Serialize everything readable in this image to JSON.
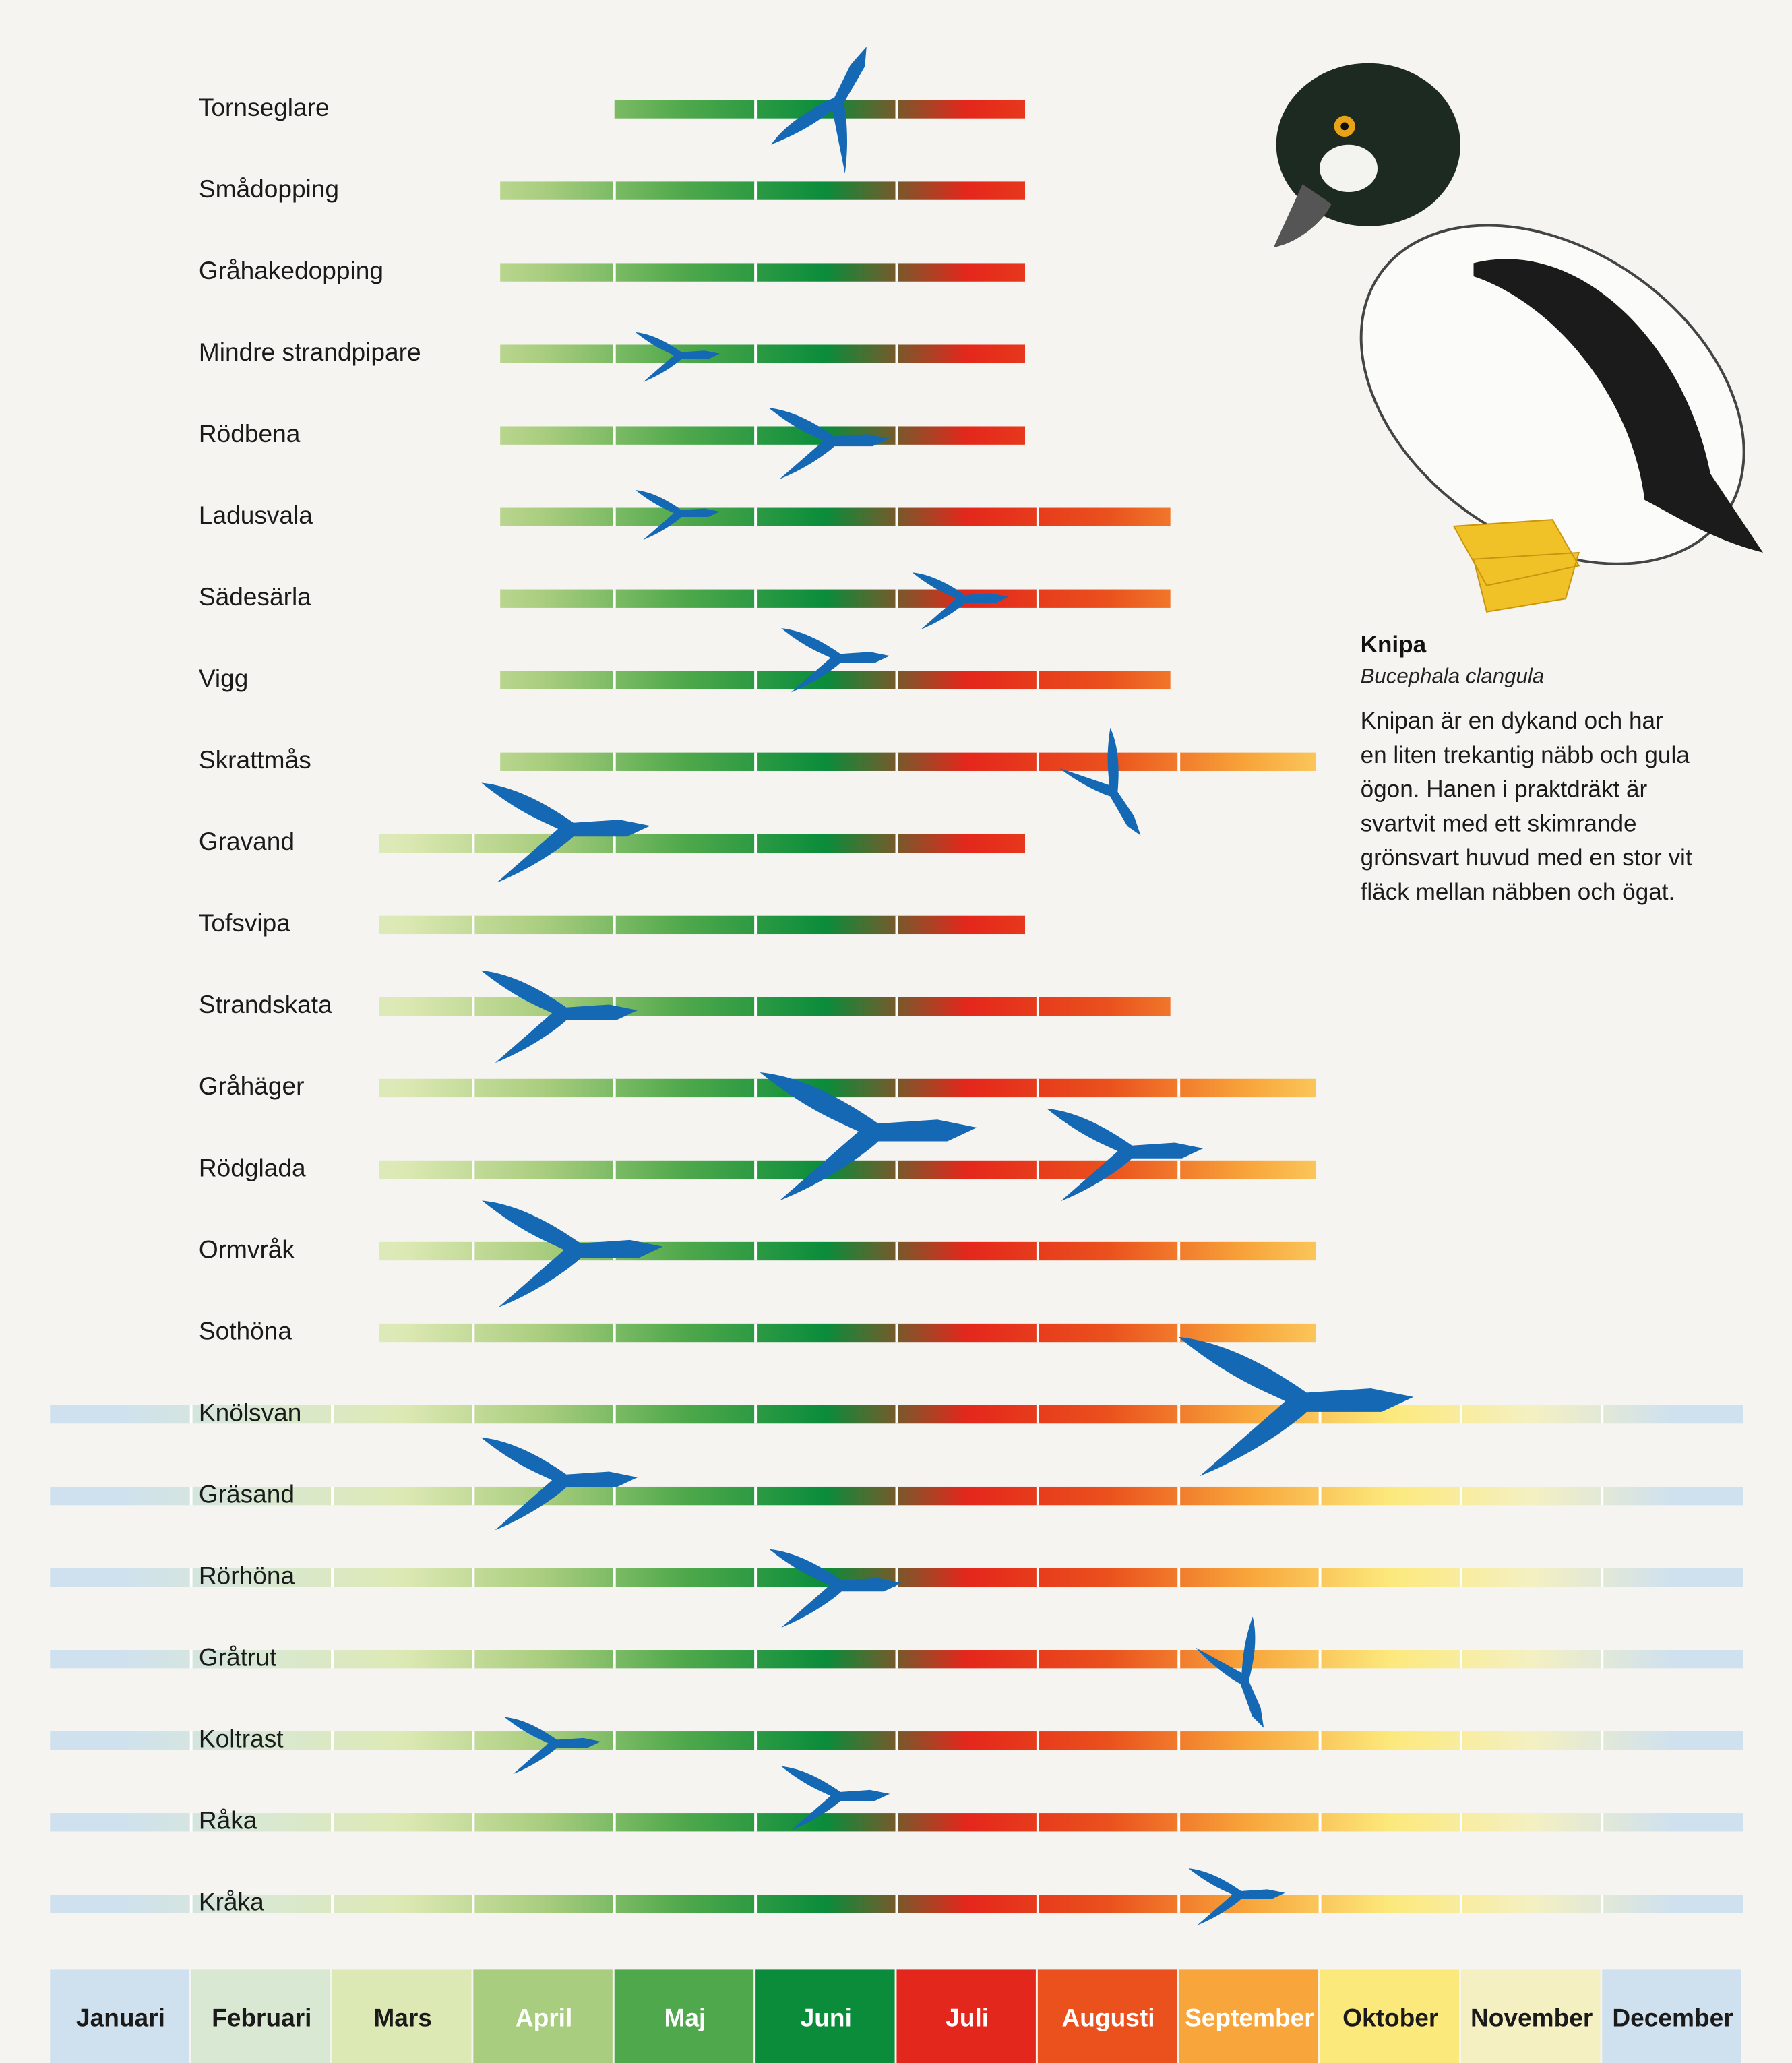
{
  "chart_data": {
    "type": "range",
    "categories": [
      "Tornseglare",
      "Smådopping",
      "Gråhakedopping",
      "Mindre strandpipare",
      "Rödbena",
      "Ladusvala",
      "Sädesärla",
      "Vigg",
      "Skrattmås",
      "Gravand",
      "Tofsvipa",
      "Strandskata",
      "Gråhäger",
      "Rödglada",
      "Ormvråk",
      "Sothöna",
      "Knölsvan",
      "Gräsand",
      "Rörhöna",
      "Gråtrut",
      "Koltrast",
      "Råka",
      "Kråka"
    ],
    "start": [
      4,
      3.19,
      3.19,
      3.19,
      3.19,
      3.19,
      3.19,
      3.19,
      3.19,
      2.33,
      2.33,
      2.33,
      2.33,
      2.33,
      2.33,
      2.33,
      0,
      0,
      0,
      0,
      0,
      0,
      0
    ],
    "end": [
      6.91,
      6.91,
      6.91,
      6.91,
      6.91,
      7.94,
      7.94,
      7.94,
      8.97,
      6.91,
      6.91,
      7.94,
      8.97,
      8.97,
      8.97,
      8.97,
      12,
      12,
      12,
      12,
      12,
      12,
      12
    ],
    "xlim": [
      0,
      12
    ],
    "months": [
      "Januari",
      "Februari",
      "Mars",
      "April",
      "Maj",
      "Juni",
      "Juli",
      "Augusti",
      "September",
      "Oktober",
      "November",
      "December"
    ],
    "month_colors": [
      "#cfe1ee",
      "#d9e8d2",
      "#dde9b4",
      "#a9cd7e",
      "#4fa84b",
      "#0a8c3b",
      "#e4271c",
      "#ea511d",
      "#f8a63b",
      "#fce97c",
      "#f4f0c2",
      "#cfe1ee"
    ],
    "month_label_colors": [
      "#1a1a1a",
      "#1a1a1a",
      "#1a1a1a",
      "#ffffff",
      "#ffffff",
      "#ffffff",
      "#ffffff",
      "#ffffff",
      "#ffffff",
      "#1a1a1a",
      "#1a1a1a",
      "#1a1a1a"
    ]
  },
  "info": {
    "title": "Knipa",
    "subtitle": "Bucephala clangula",
    "text_lines": [
      "Knipan är en dykand och har",
      "en liten trekantig näbb och gula",
      "ögon. Hanen i praktdräkt är",
      "svartvit med ett skimrande",
      "grönsvart huvud med en stor vit",
      "fläck mellan näbben och ögat."
    ]
  }
}
